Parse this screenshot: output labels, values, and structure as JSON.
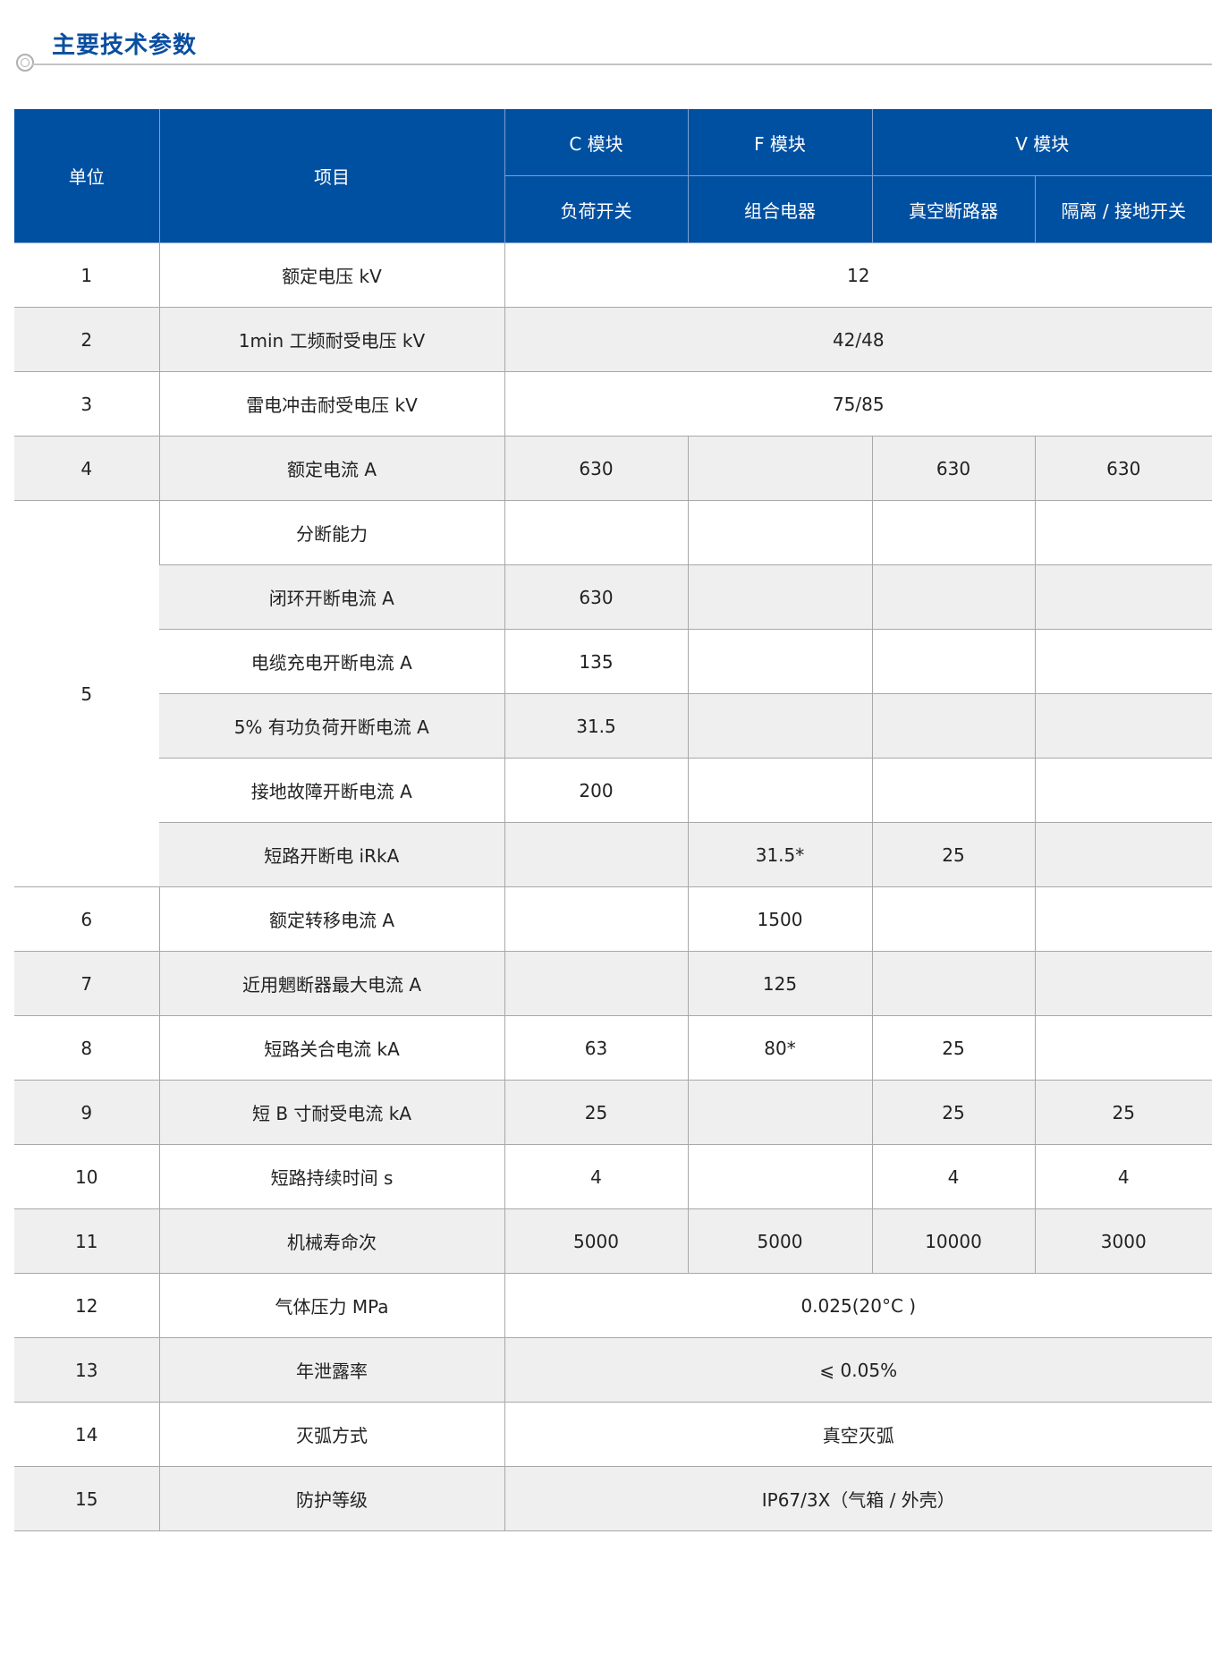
{
  "title": "主要技术参数",
  "colors": {
    "header_bg": "#0050a2",
    "title": "#0a4ea0",
    "row_shade": "#efefef"
  },
  "header": {
    "unit": "单位",
    "item": "项目",
    "groups": [
      "C 模块",
      "F 模块",
      "V 模块"
    ],
    "subs": [
      "负荷开关",
      "组合电器",
      "真空断路器",
      "隔离 / 接地开关"
    ]
  },
  "rows": [
    {
      "unit": "1",
      "item": "额定电压 kV",
      "span": "12"
    },
    {
      "unit": "2",
      "item": "1min 工频耐受电压 kV",
      "span": "42/48"
    },
    {
      "unit": "3",
      "item": "雷电冲击耐受电压 kV",
      "span": "75/85"
    },
    {
      "unit": "4",
      "item": "额定电流 A",
      "values": [
        "630",
        "",
        "630",
        "630"
      ]
    },
    {
      "unit": "5",
      "unit_rows": 6,
      "item": "分断能力",
      "values": [
        "",
        "",
        "",
        ""
      ]
    },
    {
      "item": "闭环开断电流 A",
      "values": [
        "630",
        "",
        "",
        ""
      ]
    },
    {
      "item": "电缆充电开断电流 A",
      "values": [
        "135",
        "",
        "",
        ""
      ]
    },
    {
      "item": "5% 有功负荷开断电流 A",
      "values": [
        "31.5",
        "",
        "",
        ""
      ]
    },
    {
      "item": "接地故障开断电流 A",
      "values": [
        "200",
        "",
        "",
        ""
      ]
    },
    {
      "item": "短路开断电 iRkA",
      "values": [
        "",
        "31.5*",
        "25",
        ""
      ]
    },
    {
      "unit": "6",
      "item": "额定转移电流 A",
      "values": [
        "",
        "1500",
        "",
        ""
      ]
    },
    {
      "unit": "7",
      "item": "近用魍断器最大电流 A",
      "values": [
        "",
        "125",
        "",
        ""
      ]
    },
    {
      "unit": "8",
      "item": "短路关合电流 kA",
      "values": [
        "63",
        "80*",
        "25",
        ""
      ]
    },
    {
      "unit": "9",
      "item": "短 B 寸耐受电流 kA",
      "values": [
        "25",
        "",
        "25",
        "25"
      ]
    },
    {
      "unit": "10",
      "item": "短路持续时间 s",
      "values": [
        "4",
        "",
        "4",
        "4"
      ]
    },
    {
      "unit": "11",
      "item": "机械寿命次",
      "values": [
        "5000",
        "5000",
        "10000",
        "3000"
      ]
    },
    {
      "unit": "12",
      "item": "气体压力 MPa",
      "span": "0.025(20°C )"
    },
    {
      "unit": "13",
      "item": "年泄露率",
      "span": "⩽ 0.05%"
    },
    {
      "unit": "14",
      "item": "灭弧方式",
      "span": "真空灭弧"
    },
    {
      "unit": "15",
      "item": "防护等级",
      "span": "IP67/3X（气箱 / 外壳）"
    }
  ]
}
